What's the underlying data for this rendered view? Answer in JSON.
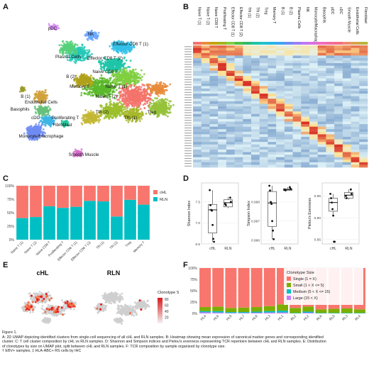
{
  "panel_labels": [
    "A",
    "B",
    "C",
    "D",
    "E",
    "F"
  ],
  "colors": {
    "hl_red": "#f8766d",
    "rln_teal": "#00bfc4",
    "heat_low": "#4575b4",
    "heat_mid": "#fee090",
    "heat_high": "#d73027",
    "clono_single": "#f8766d",
    "clono_small": "#7cae00",
    "clono_medium": "#00bfc4",
    "clono_large": "#c77cff"
  },
  "chart_data": [
    {
      "panel": "A",
      "type": "scatter",
      "title": "",
      "cluster_labels": [
        "pDC",
        "NK",
        "Effector CD8 T (1)",
        "Effector CD8 T (2)",
        "Plasma Cells",
        "Naive CD8 T",
        "B (2)",
        "Memory T",
        "Naive T (2)",
        "Naive T (1)",
        "B (1)",
        "Basophils",
        "Endothelial Cells",
        "Treg",
        "Tfh (2)",
        "Tfh (1)",
        "cDC",
        "Proliferating T",
        "Fibroblast",
        "Monocyte/Macrophage",
        "Smooth Muscle"
      ]
    },
    {
      "panel": "B",
      "type": "heatmap",
      "title": "",
      "columns": [
        "Naive T (1)",
        "Naive T (2)",
        "Naive CD8 T",
        "Proliferating T",
        "Effector CD8 T (1)",
        "Effector CD8 T (2)",
        "Tfh (1)",
        "Tfh (2)",
        "Treg",
        "Memory T",
        "B (1)",
        "B (2)",
        "Plasma Cells",
        "NK",
        "Monocyte/Macrophage",
        "Basophils",
        "pDC",
        "cDC",
        "Smooth Muscle",
        "Endothelial Cells",
        "Fibroblast"
      ]
    },
    {
      "panel": "C",
      "type": "bar",
      "title": "",
      "xlabel": "",
      "ylabel": "",
      "categories": [
        "Naive T (1)",
        "Naive T (2)",
        "Naive CD8 T",
        "Proliferating T",
        "Effector CD8 T (1)",
        "Effector CD8 T (2)",
        "Tfh (1)",
        "Tfh (2)",
        "Treg",
        "Memory T"
      ],
      "series": [
        {
          "name": "cHL",
          "values": [
            0.6,
            0.58,
            0.38,
            0.41,
            0.39,
            0.28,
            0.29,
            0.57,
            0.26,
            0.35
          ]
        },
        {
          "name": "RLN",
          "values": [
            0.4,
            0.42,
            0.62,
            0.59,
            0.61,
            0.72,
            0.71,
            0.43,
            0.74,
            0.65
          ]
        }
      ],
      "y_ticks": [
        "0%",
        "25%",
        "50%",
        "75%",
        "100%"
      ],
      "legend": "right"
    },
    {
      "panel": "D",
      "type": "box",
      "title": "",
      "plots": [
        {
          "ylabel": "Shannon Index",
          "y_ticks": [
            "7.5",
            "7.0",
            "6.5"
          ],
          "ylim": [
            6.5,
            7.95
          ],
          "groups": [
            {
              "name": "cHL",
              "q1": 6.76,
              "med": 7.31,
              "q3": 7.44,
              "lo": 6.55,
              "hi": 7.78
            },
            {
              "name": "RLN",
              "q1": 7.38,
              "med": 7.48,
              "q3": 7.55,
              "lo": 7.35,
              "hi": 7.62
            }
          ],
          "points": [
            [
              1,
              7.78
            ],
            [
              1,
              7.42
            ],
            [
              1,
              7.31
            ],
            [
              1,
              7.29
            ],
            [
              1,
              6.95
            ],
            [
              1,
              6.62
            ],
            [
              1,
              6.55
            ],
            [
              2,
              7.6
            ],
            [
              2,
              7.5
            ],
            [
              2,
              7.45
            ],
            [
              2,
              7.42
            ]
          ]
        },
        {
          "ylabel": "Simpson Index",
          "y_ticks": [
            "0.998",
            "0.997",
            "0.996"
          ],
          "ylim": [
            0.9958,
            0.999
          ],
          "groups": [
            {
              "name": "cHL",
              "q1": 0.99672,
              "med": 0.99795,
              "q3": 0.99855,
              "lo": 0.99605,
              "hi": 0.99885
            },
            {
              "name": "RLN",
              "q1": 0.9986,
              "med": 0.99865,
              "q3": 0.9987,
              "lo": 0.9986,
              "hi": 0.99878
            }
          ],
          "points": [
            [
              1,
              0.99885
            ],
            [
              1,
              0.9986
            ],
            [
              1,
              0.998
            ],
            [
              1,
              0.9979
            ],
            [
              1,
              0.997
            ],
            [
              1,
              0.9965
            ],
            [
              1,
              0.99605
            ],
            [
              2,
              0.99878
            ],
            [
              2,
              0.9987
            ],
            [
              2,
              0.99864
            ],
            [
              2,
              0.99861
            ]
          ]
        },
        {
          "ylabel": "Pielou's Evenness",
          "y_ticks": [
            "0.95",
            "0.90",
            "0.85"
          ],
          "ylim": [
            0.84,
            0.98
          ],
          "groups": [
            {
              "name": "cHL",
              "q1": 0.915,
              "med": 0.935,
              "q3": 0.945,
              "lo": 0.905,
              "hi": 0.955
            },
            {
              "name": "RLN",
              "q1": 0.945,
              "med": 0.952,
              "q3": 0.958,
              "lo": 0.942,
              "hi": 0.965
            }
          ],
          "points": [
            [
              1,
              0.955
            ],
            [
              1,
              0.945
            ],
            [
              1,
              0.935
            ],
            [
              1,
              0.92
            ],
            [
              1,
              0.905
            ],
            [
              1,
              0.845
            ],
            [
              1,
              0.845
            ],
            [
              2,
              0.965
            ],
            [
              2,
              0.955
            ],
            [
              2,
              0.95
            ],
            [
              2,
              0.945
            ]
          ]
        }
      ]
    },
    {
      "panel": "E",
      "type": "scatter",
      "title": "",
      "facets": [
        "cHL",
        "RLN"
      ],
      "legend_title": "Clonotype Size",
      "legend_ticks": [
        "80",
        "60",
        "40",
        "20"
      ],
      "color_range": [
        1,
        85
      ]
    },
    {
      "panel": "F",
      "type": "bar",
      "title": "",
      "xlabel": "",
      "ylabel": "",
      "categories": [
        "HL4",
        "HL6",
        "HL5",
        "HL7",
        "HL8",
        "HL3",
        "HL1",
        "RL2",
        "HL2",
        "RL6",
        "RL5",
        "RL3",
        "RL4"
      ],
      "series": [
        {
          "name": "Single (1 = X)",
          "values": [
            0.86,
            0.85,
            0.88,
            0.87,
            0.86,
            0.84,
            0.8,
            0.88,
            0.85,
            0.91,
            0.9,
            0.89,
            0.91
          ]
        },
        {
          "name": "Small (1 < X <= 5)",
          "values": [
            0.09,
            0.1,
            0.09,
            0.1,
            0.1,
            0.11,
            0.14,
            0.11,
            0.11,
            0.08,
            0.09,
            0.1,
            0.08
          ]
        },
        {
          "name": "Medium (5 < X <= 15)",
          "values": [
            0.025,
            0.03,
            0.02,
            0.02,
            0.025,
            0.03,
            0.04,
            0.01,
            0.025,
            0.01,
            0.01,
            0.01,
            0.01
          ]
        },
        {
          "name": "Large (15 < X)",
          "values": [
            0.025,
            0.02,
            0.01,
            0.01,
            0.015,
            0.02,
            0.02,
            0.0,
            0.015,
            0.0,
            0.0,
            0.0,
            0.0
          ]
        }
      ],
      "y_ticks": [
        "0%",
        "25%",
        "50%",
        "75%",
        "100%"
      ],
      "legend_title": "Clonotype Size",
      "legend": "top-right"
    }
  ],
  "caption": [
    "Figure 1.",
    "A: 2D UMAP depicting identified clusters from single-cell sequencing of all cHL and RLN samples. B: Heatmap showing mean expression of canonical marker genes and corresponding identified",
    "cluster. C: T cell cluster composition by cHL vs RLN samples. D: Shannon and Simpson indices and Pielou's evenness representing TCR repertoire between cHL and RLN samples. E: Distribution",
    "of clonotypes by size on UMAP plot, split between cHL and RLN samples. F: TCR composition by sample organized by clonotype size.",
    "† EBV+ samples, ‡ HLA-ABC+ RS cells by IHC"
  ]
}
